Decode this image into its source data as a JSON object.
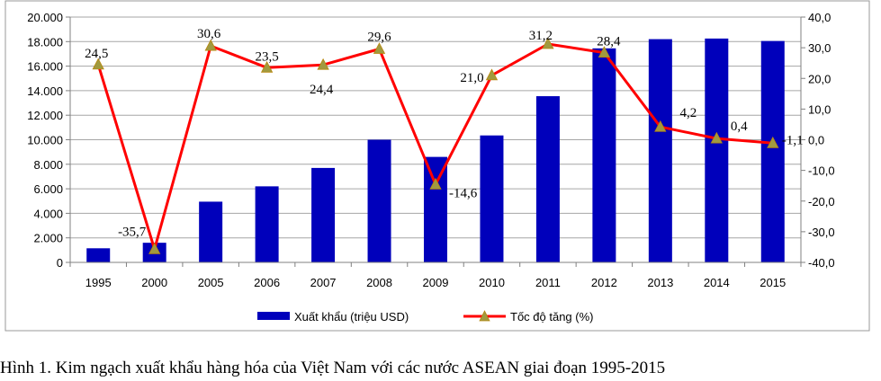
{
  "chart_data": {
    "type": "bar+line",
    "categories": [
      "1995",
      "2000",
      "2005",
      "2006",
      "2007",
      "2008",
      "2009",
      "2010",
      "2011",
      "2012",
      "2013",
      "2014",
      "2015"
    ],
    "series": [
      {
        "name": "Xuất khẩu (triệu USD)",
        "type": "bar",
        "axis": "left",
        "color": "#0000bb",
        "values": [
          1150,
          1600,
          4950,
          6200,
          7700,
          10000,
          8600,
          10350,
          13550,
          17450,
          18200,
          18250,
          18050
        ]
      },
      {
        "name": "Tốc độ tăng (%)",
        "type": "line",
        "axis": "right",
        "color": "#ff0000",
        "marker_color": "#a09a40",
        "values": [
          24.5,
          -35.7,
          30.6,
          23.5,
          24.4,
          29.6,
          -14.6,
          21.0,
          31.2,
          28.4,
          4.2,
          0.4,
          -1.1
        ],
        "data_labels": [
          "24,5",
          "-35,7",
          "30,6",
          "23,5",
          "24,4",
          "29,6",
          "-14,6",
          "21,0",
          "31,2",
          "28,4",
          "4,2",
          "0,4",
          "-1,1"
        ]
      }
    ],
    "left_axis": {
      "ylim": [
        0,
        20000
      ],
      "tick_values": [
        0,
        2000,
        4000,
        6000,
        8000,
        10000,
        12000,
        14000,
        16000,
        18000,
        20000
      ],
      "tick_labels": [
        "0",
        "2.000",
        "4.000",
        "6.000",
        "8.000",
        "10.000",
        "12.000",
        "14.000",
        "16.000",
        "18.000",
        "20.000"
      ]
    },
    "right_axis": {
      "ylim": [
        -40,
        40
      ],
      "tick_values": [
        -40,
        -30,
        -20,
        -10,
        0,
        10,
        20,
        30,
        40
      ],
      "tick_labels": [
        "-40,0",
        "-30,0",
        "-20,0",
        "-10,0",
        "0,0",
        "10,0",
        "20,0",
        "30,0",
        "40,0"
      ]
    },
    "grid": true,
    "legend_position": "bottom",
    "caption": "Hình 1. Kim ngạch xuất khẩu hàng hóa của Việt Nam với các nước ASEAN giai đoạn 1995-2015"
  }
}
